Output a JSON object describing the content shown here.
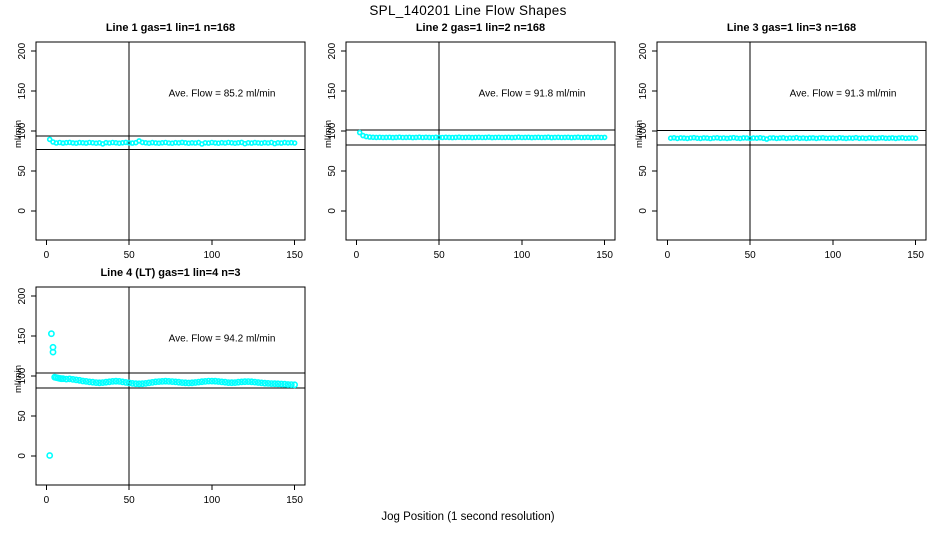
{
  "figure": {
    "title": "SPL_140201  Line Flow Shapes",
    "xlabel": "Jog Position (1 second resolution)",
    "point_color": "#00ffff",
    "line_color": "#000000"
  },
  "chart_data": [
    {
      "type": "scatter",
      "title": "Line 1 gas=1 lin=1 n=168",
      "annotation": "Ave. Flow =  85.2  ml/min",
      "avg_flow_ml_min": 85.2,
      "n": 168,
      "ylabel": "ml/min",
      "x_ticks": [
        0,
        50,
        100,
        150
      ],
      "y_ticks": [
        0,
        50,
        100,
        150,
        200
      ],
      "xlim": [
        0,
        150
      ],
      "ylim": [
        0,
        200
      ],
      "ref_lines": {
        "upper": 93.7,
        "lower": 76.7,
        "vertical": 50
      },
      "points": [
        [
          2,
          89.5
        ],
        [
          4,
          86.2
        ],
        [
          6,
          85.0
        ],
        [
          8,
          85.6
        ],
        [
          10,
          84.9
        ],
        [
          12,
          85.4
        ],
        [
          14,
          85.8
        ],
        [
          16,
          85.1
        ],
        [
          18,
          84.8
        ],
        [
          20,
          85.5
        ],
        [
          22,
          85.2
        ],
        [
          24,
          84.9
        ],
        [
          26,
          85.6
        ],
        [
          28,
          85.3
        ],
        [
          30,
          84.7
        ],
        [
          32,
          85.2
        ],
        [
          34,
          83.9
        ],
        [
          36,
          85.4
        ],
        [
          38,
          85.0
        ],
        [
          40,
          85.6
        ],
        [
          42,
          85.2
        ],
        [
          44,
          84.8
        ],
        [
          46,
          85.3
        ],
        [
          48,
          85.7
        ],
        [
          50,
          85.1
        ],
        [
          52,
          84.9
        ],
        [
          54,
          85.4
        ],
        [
          56,
          87.6
        ],
        [
          58,
          85.8
        ],
        [
          60,
          85.2
        ],
        [
          62,
          84.8
        ],
        [
          64,
          85.5
        ],
        [
          66,
          85.1
        ],
        [
          68,
          84.7
        ],
        [
          70,
          85.3
        ],
        [
          72,
          85.6
        ],
        [
          74,
          85.0
        ],
        [
          76,
          84.8
        ],
        [
          78,
          85.4
        ],
        [
          80,
          85.1
        ],
        [
          82,
          85.7
        ],
        [
          84,
          85.2
        ],
        [
          86,
          84.8
        ],
        [
          88,
          85.3
        ],
        [
          90,
          85.0
        ],
        [
          92,
          85.5
        ],
        [
          94,
          83.8
        ],
        [
          96,
          85.2
        ],
        [
          98,
          84.9
        ],
        [
          100,
          85.6
        ],
        [
          102,
          85.1
        ],
        [
          104,
          84.7
        ],
        [
          106,
          85.4
        ],
        [
          108,
          85.0
        ],
        [
          110,
          85.6
        ],
        [
          112,
          85.2
        ],
        [
          114,
          84.8
        ],
        [
          116,
          85.3
        ],
        [
          118,
          85.7
        ],
        [
          120,
          84.1
        ],
        [
          122,
          85.2
        ],
        [
          124,
          84.9
        ],
        [
          126,
          85.5
        ],
        [
          128,
          85.1
        ],
        [
          130,
          84.7
        ],
        [
          132,
          85.4
        ],
        [
          134,
          85.0
        ],
        [
          136,
          85.6
        ],
        [
          138,
          84.2
        ],
        [
          140,
          85.3
        ],
        [
          142,
          84.9
        ],
        [
          144,
          85.5
        ],
        [
          146,
          85.1
        ],
        [
          148,
          85.4
        ],
        [
          150,
          85.0
        ]
      ]
    },
    {
      "type": "scatter",
      "title": "Line 2 gas=1 lin=2 n=168",
      "annotation": "Ave. Flow =  91.8  ml/min",
      "avg_flow_ml_min": 91.8,
      "n": 168,
      "ylabel": "ml/min",
      "x_ticks": [
        0,
        50,
        100,
        150
      ],
      "y_ticks": [
        0,
        50,
        100,
        150,
        200
      ],
      "xlim": [
        0,
        150
      ],
      "ylim": [
        0,
        200
      ],
      "ref_lines": {
        "upper": 101.0,
        "lower": 82.6,
        "vertical": 50
      },
      "points": [
        [
          2,
          98.0
        ],
        [
          4,
          94.3
        ],
        [
          6,
          93.0
        ],
        [
          8,
          92.4
        ],
        [
          10,
          92.1
        ],
        [
          12,
          92.0
        ],
        [
          14,
          92.1
        ],
        [
          16,
          91.9
        ],
        [
          18,
          92.0
        ],
        [
          20,
          92.1
        ],
        [
          22,
          91.8
        ],
        [
          24,
          92.0
        ],
        [
          26,
          92.2
        ],
        [
          28,
          91.9
        ],
        [
          30,
          92.0
        ],
        [
          32,
          92.1
        ],
        [
          34,
          91.8
        ],
        [
          36,
          92.0
        ],
        [
          38,
          92.2
        ],
        [
          40,
          91.9
        ],
        [
          42,
          92.1
        ],
        [
          44,
          92.0
        ],
        [
          46,
          91.8
        ],
        [
          48,
          92.1
        ],
        [
          50,
          92.0
        ],
        [
          52,
          91.9
        ],
        [
          54,
          92.1
        ],
        [
          56,
          92.0
        ],
        [
          58,
          91.8
        ],
        [
          60,
          92.0
        ],
        [
          62,
          92.2
        ],
        [
          64,
          91.9
        ],
        [
          66,
          92.0
        ],
        [
          68,
          92.1
        ],
        [
          70,
          91.8
        ],
        [
          72,
          92.0
        ],
        [
          74,
          92.1
        ],
        [
          76,
          91.9
        ],
        [
          78,
          92.0
        ],
        [
          80,
          92.2
        ],
        [
          82,
          91.8
        ],
        [
          84,
          92.0
        ],
        [
          86,
          92.1
        ],
        [
          88,
          91.9
        ],
        [
          90,
          92.0
        ],
        [
          92,
          92.1
        ],
        [
          94,
          91.8
        ],
        [
          96,
          92.0
        ],
        [
          98,
          92.2
        ],
        [
          100,
          91.9
        ],
        [
          102,
          92.0
        ],
        [
          104,
          92.1
        ],
        [
          106,
          91.8
        ],
        [
          108,
          92.0
        ],
        [
          110,
          92.1
        ],
        [
          112,
          91.9
        ],
        [
          114,
          92.0
        ],
        [
          116,
          92.2
        ],
        [
          118,
          91.8
        ],
        [
          120,
          92.0
        ],
        [
          122,
          92.1
        ],
        [
          124,
          91.9
        ],
        [
          126,
          92.0
        ],
        [
          128,
          92.1
        ],
        [
          130,
          91.8
        ],
        [
          132,
          92.0
        ],
        [
          134,
          92.2
        ],
        [
          136,
          91.9
        ],
        [
          138,
          92.0
        ],
        [
          140,
          92.1
        ],
        [
          142,
          91.8
        ],
        [
          144,
          92.0
        ],
        [
          146,
          92.1
        ],
        [
          148,
          91.9
        ],
        [
          150,
          92.0
        ]
      ]
    },
    {
      "type": "scatter",
      "title": "Line 3 gas=1 lin=3 n=168",
      "annotation": "Ave. Flow =  91.3  ml/min",
      "avg_flow_ml_min": 91.3,
      "n": 168,
      "ylabel": "ml/min",
      "x_ticks": [
        0,
        50,
        100,
        150
      ],
      "y_ticks": [
        0,
        50,
        100,
        150,
        200
      ],
      "xlim": [
        0,
        150
      ],
      "ylim": [
        0,
        200
      ],
      "ref_lines": {
        "upper": 100.4,
        "lower": 82.2,
        "vertical": 50
      },
      "points": [
        [
          2,
          91.0
        ],
        [
          4,
          91.5
        ],
        [
          6,
          90.8
        ],
        [
          8,
          91.4
        ],
        [
          10,
          91.1
        ],
        [
          12,
          90.7
        ],
        [
          14,
          91.3
        ],
        [
          16,
          91.6
        ],
        [
          18,
          91.0
        ],
        [
          20,
          90.8
        ],
        [
          22,
          91.4
        ],
        [
          24,
          91.1
        ],
        [
          26,
          90.6
        ],
        [
          28,
          91.2
        ],
        [
          30,
          91.5
        ],
        [
          32,
          90.9
        ],
        [
          34,
          91.3
        ],
        [
          36,
          90.7
        ],
        [
          38,
          91.1
        ],
        [
          40,
          91.6
        ],
        [
          42,
          91.0
        ],
        [
          44,
          90.8
        ],
        [
          46,
          91.4
        ],
        [
          48,
          91.2
        ],
        [
          50,
          90.7
        ],
        [
          52,
          91.3
        ],
        [
          54,
          91.0
        ],
        [
          56,
          91.5
        ],
        [
          58,
          90.9
        ],
        [
          60,
          89.9
        ],
        [
          62,
          91.2
        ],
        [
          64,
          91.4
        ],
        [
          66,
          90.8
        ],
        [
          68,
          91.1
        ],
        [
          70,
          91.5
        ],
        [
          72,
          90.7
        ],
        [
          74,
          91.2
        ],
        [
          76,
          91.0
        ],
        [
          78,
          91.6
        ],
        [
          80,
          90.9
        ],
        [
          82,
          91.3
        ],
        [
          84,
          90.8
        ],
        [
          86,
          91.1
        ],
        [
          88,
          91.4
        ],
        [
          90,
          90.7
        ],
        [
          92,
          91.2
        ],
        [
          94,
          91.5
        ],
        [
          96,
          90.9
        ],
        [
          98,
          91.0
        ],
        [
          100,
          91.3
        ],
        [
          102,
          90.8
        ],
        [
          104,
          91.5
        ],
        [
          106,
          91.1
        ],
        [
          108,
          90.7
        ],
        [
          110,
          91.3
        ],
        [
          112,
          91.0
        ],
        [
          114,
          91.6
        ],
        [
          116,
          90.9
        ],
        [
          118,
          91.2
        ],
        [
          120,
          90.8
        ],
        [
          122,
          91.4
        ],
        [
          124,
          91.1
        ],
        [
          126,
          90.7
        ],
        [
          128,
          91.2
        ],
        [
          130,
          91.5
        ],
        [
          132,
          90.9
        ],
        [
          134,
          91.0
        ],
        [
          136,
          91.4
        ],
        [
          138,
          90.8
        ],
        [
          140,
          91.2
        ],
        [
          142,
          91.5
        ],
        [
          144,
          90.9
        ],
        [
          146,
          91.1
        ],
        [
          148,
          91.3
        ],
        [
          150,
          91.0
        ]
      ]
    },
    {
      "type": "scatter",
      "title": "Line 4 (LT) gas=1 lin=4 n=3",
      "annotation": "Ave. Flow =  94.2  ml/min",
      "avg_flow_ml_min": 94.2,
      "n": 3,
      "ylabel": "ml/min",
      "x_ticks": [
        0,
        50,
        100,
        150
      ],
      "y_ticks": [
        0,
        50,
        100,
        150,
        200
      ],
      "xlim": [
        0,
        150
      ],
      "ylim": [
        0,
        200
      ],
      "ref_lines": {
        "upper": 103.6,
        "lower": 84.8,
        "vertical": 50
      },
      "points": [
        [
          2,
          0.5
        ],
        [
          3,
          153
        ],
        [
          4,
          136
        ],
        [
          4,
          130
        ],
        [
          5,
          98.5
        ],
        [
          6,
          98.0
        ],
        [
          7,
          97.5
        ],
        [
          8,
          97.0
        ],
        [
          9,
          96.6
        ],
        [
          10,
          96.6
        ],
        [
          12,
          96.2
        ],
        [
          14,
          96.4
        ],
        [
          16,
          95.8
        ],
        [
          18,
          95.2
        ],
        [
          20,
          94.6
        ],
        [
          22,
          93.8
        ],
        [
          24,
          93.2
        ],
        [
          26,
          92.6
        ],
        [
          28,
          92.2
        ],
        [
          30,
          91.8
        ],
        [
          32,
          91.5
        ],
        [
          34,
          91.8
        ],
        [
          36,
          92.3
        ],
        [
          38,
          92.8
        ],
        [
          40,
          93.2
        ],
        [
          42,
          93.5
        ],
        [
          44,
          93.2
        ],
        [
          46,
          92.6
        ],
        [
          48,
          92.0
        ],
        [
          50,
          91.4
        ],
        [
          52,
          90.8
        ],
        [
          54,
          90.4
        ],
        [
          56,
          90.2
        ],
        [
          58,
          90.4
        ],
        [
          60,
          90.8
        ],
        [
          62,
          91.4
        ],
        [
          64,
          92.0
        ],
        [
          66,
          92.6
        ],
        [
          68,
          93.0
        ],
        [
          70,
          93.3
        ],
        [
          72,
          93.5
        ],
        [
          74,
          93.3
        ],
        [
          76,
          93.0
        ],
        [
          78,
          92.6
        ],
        [
          80,
          92.2
        ],
        [
          82,
          91.8
        ],
        [
          84,
          91.5
        ],
        [
          86,
          91.3
        ],
        [
          88,
          91.5
        ],
        [
          90,
          91.9
        ],
        [
          92,
          92.4
        ],
        [
          94,
          92.9
        ],
        [
          96,
          93.3
        ],
        [
          98,
          93.6
        ],
        [
          100,
          93.7
        ],
        [
          102,
          93.5
        ],
        [
          104,
          93.1
        ],
        [
          106,
          92.6
        ],
        [
          108,
          92.2
        ],
        [
          110,
          91.8
        ],
        [
          112,
          91.6
        ],
        [
          114,
          91.8
        ],
        [
          116,
          92.2
        ],
        [
          118,
          92.6
        ],
        [
          120,
          92.9
        ],
        [
          122,
          93.0
        ],
        [
          124,
          92.8
        ],
        [
          126,
          92.4
        ],
        [
          128,
          91.9
        ],
        [
          130,
          91.4
        ],
        [
          132,
          91.0
        ],
        [
          134,
          90.7
        ],
        [
          136,
          90.5
        ],
        [
          138,
          90.4
        ],
        [
          140,
          90.3
        ],
        [
          142,
          90.0
        ],
        [
          144,
          89.7
        ],
        [
          146,
          89.4
        ],
        [
          148,
          89.2
        ],
        [
          150,
          89.0
        ]
      ]
    }
  ]
}
